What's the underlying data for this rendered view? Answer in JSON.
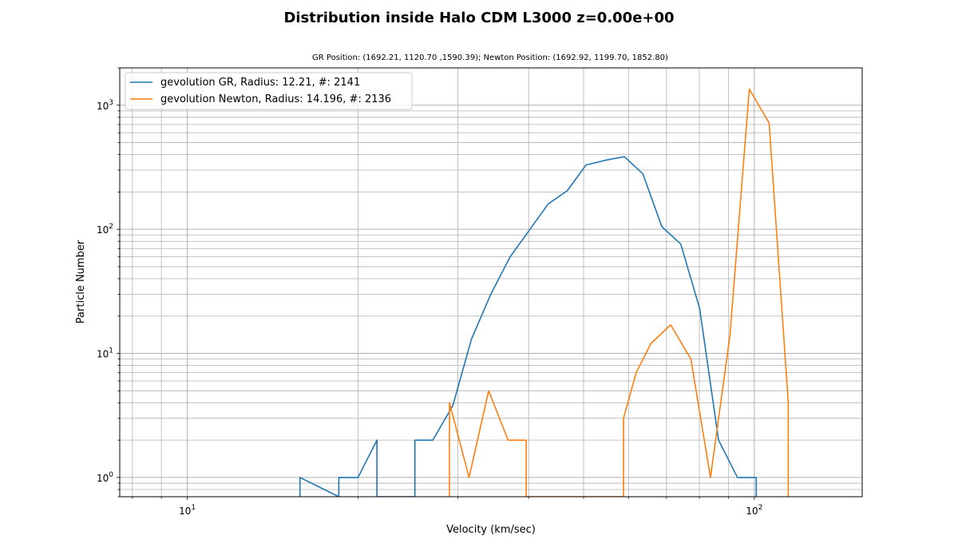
{
  "chart_data": {
    "type": "line",
    "title": "Distribution inside Halo CDM L3000 z=0.00e+00",
    "subtitle": "GR Position: (1692.21, 1120.70 ,1590.39); Newton Position: (1692.92, 1199.70, 1852.80)",
    "xlabel": "Velocity (km/sec)",
    "ylabel": "Particle Number",
    "xscale": "log",
    "yscale": "log",
    "xlim": [
      7.6,
      155
    ],
    "ylim": [
      0.7,
      2000
    ],
    "grid": true,
    "legend_position": "top-left",
    "x_tick_labels": [
      {
        "value": 10,
        "base": "10",
        "exp": "1"
      },
      {
        "value": 100,
        "base": "10",
        "exp": "2"
      }
    ],
    "y_tick_labels": [
      {
        "value": 1,
        "base": "10",
        "exp": "0"
      },
      {
        "value": 10,
        "base": "10",
        "exp": "1"
      },
      {
        "value": 100,
        "base": "10",
        "exp": "2"
      },
      {
        "value": 1000,
        "base": "10",
        "exp": "3"
      }
    ],
    "series": [
      {
        "name": "gevolution GR, Radius: 12.21, #: 2141",
        "color": "#1f77b4",
        "points": [
          [
            15.8,
            0.7
          ],
          [
            15.8,
            1
          ],
          [
            18.5,
            0.7
          ],
          [
            18.5,
            1
          ],
          [
            20.0,
            1
          ],
          [
            21.6,
            2
          ],
          [
            21.6,
            0.7
          ],
          [
            25.2,
            0.7
          ],
          [
            25.2,
            2
          ],
          [
            27.1,
            2
          ],
          [
            29.4,
            3.8
          ],
          [
            31.7,
            13
          ],
          [
            34.3,
            30
          ],
          [
            37.1,
            60
          ],
          [
            43.3,
            160
          ],
          [
            46.8,
            205
          ],
          [
            50.5,
            330
          ],
          [
            54.6,
            360
          ],
          [
            59.0,
            385
          ],
          [
            63.6,
            280
          ],
          [
            68.7,
            105
          ],
          [
            74.2,
            76
          ],
          [
            80.1,
            23
          ],
          [
            86.5,
            2
          ],
          [
            93.4,
            1
          ],
          [
            100.8,
            1
          ],
          [
            100.8,
            0.7
          ]
        ]
      },
      {
        "name": "gevolution Newton, Radius: 14.196, #: 2136",
        "color": "#ff7f0e",
        "points": [
          [
            29.0,
            0.7
          ],
          [
            29.0,
            4
          ],
          [
            31.4,
            1
          ],
          [
            34.0,
            5
          ],
          [
            36.8,
            2
          ],
          [
            39.6,
            2
          ],
          [
            39.6,
            0.7
          ],
          [
            58.8,
            0.7
          ],
          [
            58.8,
            3
          ],
          [
            61.9,
            7
          ],
          [
            65.7,
            12
          ],
          [
            71.2,
            17
          ],
          [
            77.3,
            9
          ],
          [
            83.7,
            1
          ],
          [
            90.6,
            14
          ],
          [
            98.0,
            1350
          ],
          [
            106.2,
            720
          ],
          [
            114.8,
            4
          ],
          [
            114.8,
            0.7
          ]
        ]
      }
    ]
  }
}
